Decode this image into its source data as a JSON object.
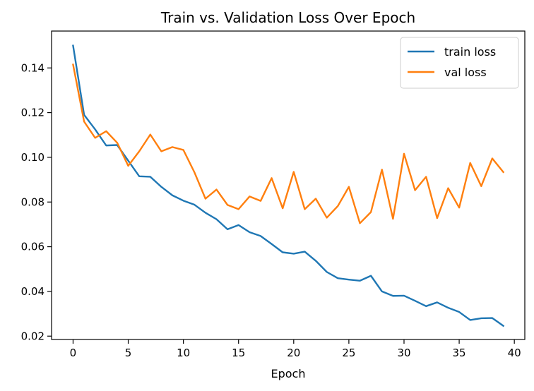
{
  "chart_data": {
    "type": "line",
    "title": "Train vs. Validation Loss Over Epoch",
    "xlabel": "Epoch",
    "ylabel": "",
    "xlim": [
      -1.95,
      40.95
    ],
    "ylim": [
      0.0185,
      0.1565
    ],
    "xticks": [
      0,
      5,
      10,
      15,
      20,
      25,
      30,
      35,
      40
    ],
    "yticks": [
      0.02,
      0.04,
      0.06,
      0.08,
      0.1,
      0.12,
      0.14
    ],
    "ytick_labels": [
      "0.02",
      "0.04",
      "0.06",
      "0.08",
      "0.10",
      "0.12",
      "0.14"
    ],
    "legend_position": "top-right",
    "grid": false,
    "x": [
      0,
      1,
      2,
      3,
      4,
      5,
      6,
      7,
      8,
      9,
      10,
      11,
      12,
      13,
      14,
      15,
      16,
      17,
      18,
      19,
      20,
      21,
      22,
      23,
      24,
      25,
      26,
      27,
      28,
      29,
      30,
      31,
      32,
      33,
      34,
      35,
      36,
      37,
      38,
      39
    ],
    "series": [
      {
        "name": "train loss",
        "color": "#1f77b4",
        "values": [
          0.15,
          0.119,
          0.1125,
          0.1053,
          0.1055,
          0.0985,
          0.0915,
          0.0913,
          0.0868,
          0.083,
          0.0806,
          0.0788,
          0.0752,
          0.0723,
          0.0678,
          0.0697,
          0.0665,
          0.0648,
          0.0612,
          0.0575,
          0.0569,
          0.0578,
          0.0537,
          0.0487,
          0.0459,
          0.0453,
          0.0448,
          0.047,
          0.04,
          0.038,
          0.0381,
          0.0358,
          0.0334,
          0.0351,
          0.0327,
          0.0308,
          0.0272,
          0.028,
          0.0281,
          0.0246
        ]
      },
      {
        "name": "val loss",
        "color": "#ff7f0e",
        "values": [
          0.1415,
          0.116,
          0.1087,
          0.1117,
          0.1065,
          0.0962,
          0.1027,
          0.1102,
          0.1027,
          0.1046,
          0.1033,
          0.0933,
          0.0815,
          0.0856,
          0.0787,
          0.0768,
          0.0825,
          0.0805,
          0.0907,
          0.0772,
          0.0935,
          0.0768,
          0.0815,
          0.073,
          0.0782,
          0.0868,
          0.0705,
          0.0755,
          0.0945,
          0.0725,
          0.1016,
          0.0853,
          0.0913,
          0.0728,
          0.0862,
          0.0775,
          0.0975,
          0.0871,
          0.0995,
          0.0934
        ]
      }
    ]
  }
}
